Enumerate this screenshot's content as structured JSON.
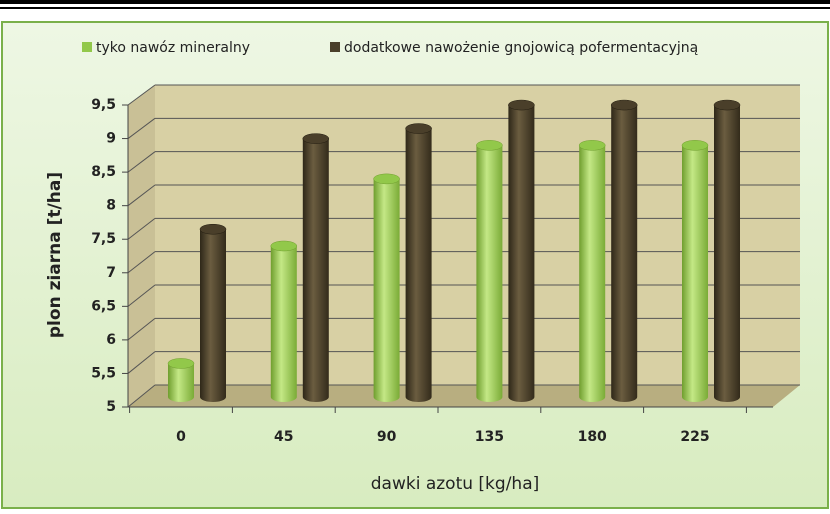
{
  "chart_data": {
    "type": "bar",
    "categories": [
      "0",
      "45",
      "90",
      "135",
      "180",
      "225"
    ],
    "series": [
      {
        "name": "tyko nawóz mineralny",
        "color": "#92c84a",
        "values": [
          5.5,
          7.25,
          8.25,
          8.75,
          8.75,
          8.75
        ]
      },
      {
        "name": "dodatkowe nawożenie gnojowicą pofermentacyjną",
        "color": "#4a3f2a",
        "values": [
          7.5,
          8.85,
          9.0,
          9.35,
          9.35,
          9.35
        ]
      }
    ],
    "x_label": "dawki azotu [kg/ha]",
    "y_label": "plon ziarna [t/ha]",
    "ylim": [
      5,
      9.5
    ],
    "yticks": [
      5,
      {
        "value": 5.5,
        "label": "5,5"
      },
      6,
      {
        "value": 6.5,
        "label": "6,5"
      },
      7,
      {
        "value": 7.5,
        "label": "7,5"
      },
      8,
      {
        "value": 8.5,
        "label": "8,5"
      },
      9,
      {
        "value": 9.5,
        "label": "9,5"
      }
    ],
    "grid": true,
    "legend": "top"
  }
}
